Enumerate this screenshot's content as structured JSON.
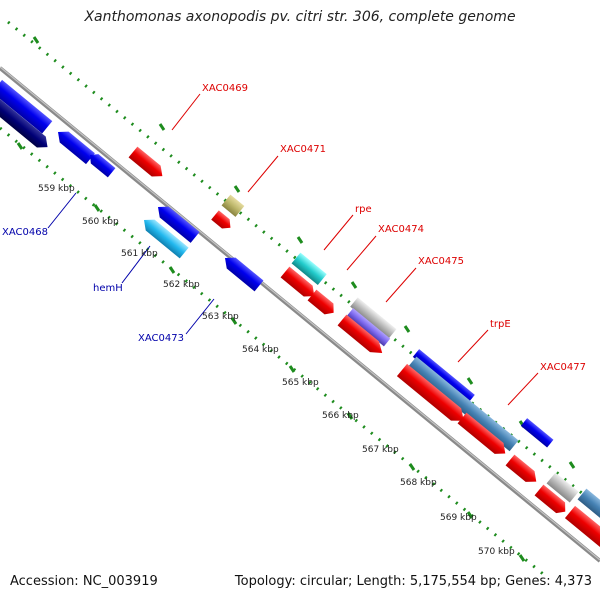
{
  "title": "Xanthomonas axonopodis pv. citri str. 306, complete genome",
  "footer": {
    "accession": "Accession: NC_003919",
    "summary": "Topology: circular; Length: 5,175,554 bp; Genes: 4,373"
  },
  "kbp_labels": [
    "559 kbp",
    "560 kbp",
    "561 kbp",
    "562 kbp",
    "563 kbp",
    "564 kbp",
    "565 kbp",
    "566 kbp",
    "567 kbp",
    "568 kbp",
    "569 kbp",
    "570 kbp"
  ],
  "gene_labels_forward": [
    "XAC0469",
    "XAC0471",
    "rpe",
    "XAC0474",
    "XAC0475",
    "trpE",
    "XAC0477"
  ],
  "gene_labels_reverse": [
    "XAC0468",
    "hemH",
    "XAC0473"
  ],
  "colors": {
    "forward_label": "#dd0000",
    "reverse_label": "#0000aa",
    "backbone": "#8a8a8a",
    "dotted_track": "#1e8c1e"
  }
}
